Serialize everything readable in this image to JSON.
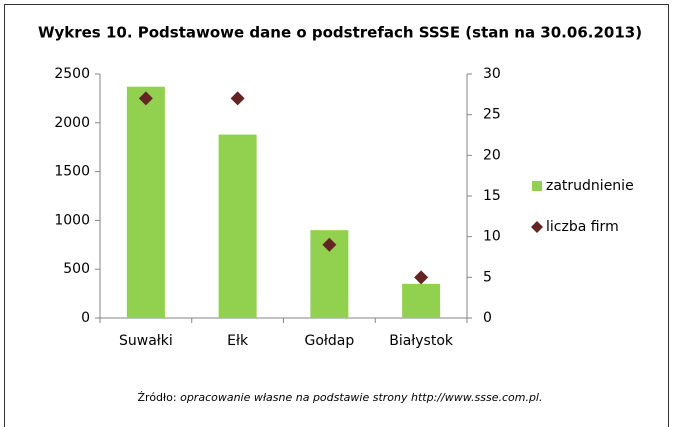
{
  "chart_data": {
    "type": "bar",
    "title": "Wykres 10. Podstawowe dane o podstrefach SSSE (stan na 30.06.2013)",
    "categories": [
      "Suwałki",
      "Ełk",
      "Gołdap",
      "Białystok"
    ],
    "series": [
      {
        "name": "zatrudnienie",
        "type": "bar",
        "color": "#92d050",
        "values": [
          2370,
          1880,
          900,
          350
        ]
      },
      {
        "name": "liczba firm",
        "type": "scatter",
        "axis": "y2",
        "color": "#632523",
        "values": [
          27,
          27,
          9,
          5
        ]
      }
    ],
    "ylim": [
      0,
      2500
    ],
    "yticks": [
      0,
      500,
      1000,
      1500,
      2000,
      2500
    ],
    "y2lim": [
      0,
      30
    ],
    "y2ticks": [
      0,
      5,
      10,
      15,
      20,
      25,
      30
    ],
    "legend": "right",
    "source_label": "Źródło:",
    "source_text": "opracowanie własne na podstawie strony http://www.ssse.com.pl."
  }
}
